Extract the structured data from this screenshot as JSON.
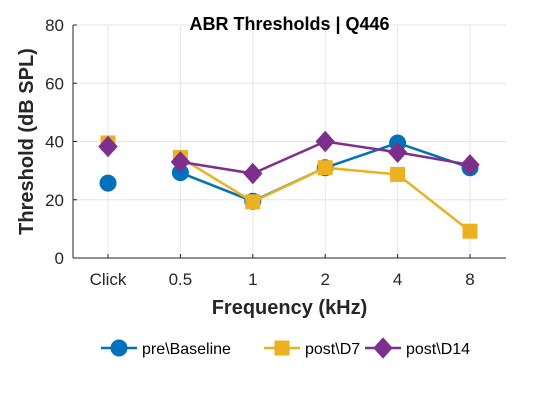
{
  "chart_data": {
    "type": "line",
    "title": "ABR Thresholds | Q446",
    "xlabel": "Frequency (kHz)",
    "ylabel": "Threshold (dB SPL)",
    "categories": [
      "Click",
      "0.5",
      "1",
      "2",
      "4",
      "8"
    ],
    "ylim": [
      0,
      80
    ],
    "yticks": [
      0,
      20,
      40,
      60,
      80
    ],
    "grid": true,
    "legend_position": "bottom",
    "series": [
      {
        "name": "pre\\Baseline",
        "color": "#0072BD",
        "marker": "circle",
        "values": [
          25.7,
          29.3,
          19.5,
          31.0,
          39.5,
          31.0
        ],
        "connect_from": 1
      },
      {
        "name": "post\\D7",
        "color": "#EDB120",
        "marker": "square",
        "values": [
          39.5,
          34.5,
          19.3,
          31.0,
          28.7,
          9.2
        ],
        "connect_from": 1
      },
      {
        "name": "post\\D14",
        "color": "#7E2F8E",
        "marker": "diamond",
        "values": [
          38.3,
          33.0,
          29.0,
          40.0,
          36.3,
          32.0
        ],
        "connect_from": 1
      }
    ]
  }
}
